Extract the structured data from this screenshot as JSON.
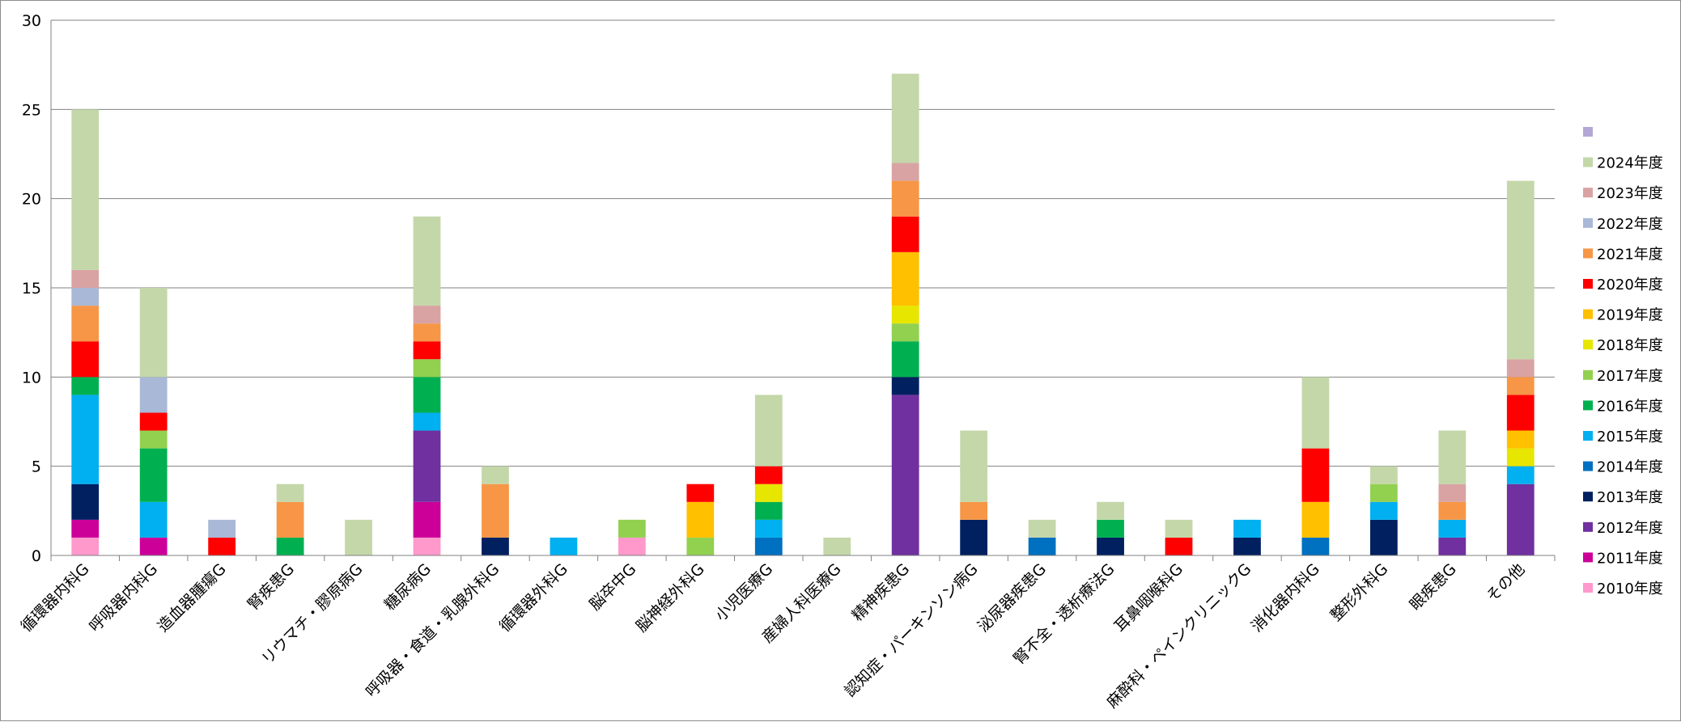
{
  "chart_data": {
    "type": "bar",
    "stacked": true,
    "ylim": [
      0,
      30
    ],
    "yticks": [
      "0",
      "5",
      "10",
      "15",
      "20",
      "25",
      "30"
    ],
    "grid": true,
    "legend_position": "right",
    "categories": [
      "循環器内科G",
      "呼吸器内科G",
      "造血器腫瘍G",
      "腎疾患G",
      "リウマチ・膠原病G",
      "糖尿病G",
      "呼吸器・食道・乳腺外科G",
      "循環器外科G",
      "脳卒中G",
      "脳神経外科G",
      "小児医療G",
      "産婦人科医療G",
      "精神疾患G",
      "認知症・パーキンソン病G",
      "泌尿器疾患G",
      "腎不全・透析療法G",
      "耳鼻咽喉科G",
      "麻酔科・ペインクリニックG",
      "消化器内科G",
      "整形外科G",
      "眼疾患G",
      "その他"
    ],
    "series": [
      {
        "name": "2010年度",
        "color": "#ff99cc",
        "values": [
          1,
          0,
          0,
          0,
          0,
          1,
          0,
          0,
          1,
          0,
          0,
          0,
          0,
          0,
          0,
          0,
          0,
          0,
          0,
          0,
          0,
          0
        ]
      },
      {
        "name": "2011年度",
        "color": "#cc0099",
        "values": [
          1,
          1,
          0,
          0,
          0,
          2,
          0,
          0,
          0,
          0,
          0,
          0,
          0,
          0,
          0,
          0,
          0,
          0,
          0,
          0,
          0,
          0
        ]
      },
      {
        "name": "2012年度",
        "color": "#7030a0",
        "values": [
          0,
          0,
          0,
          0,
          0,
          4,
          0,
          0,
          0,
          0,
          0,
          0,
          9,
          0,
          0,
          0,
          0,
          0,
          0,
          0,
          1,
          4
        ]
      },
      {
        "name": "2013年度",
        "color": "#002060",
        "values": [
          2,
          0,
          0,
          0,
          0,
          0,
          1,
          0,
          0,
          0,
          0,
          0,
          1,
          2,
          0,
          1,
          0,
          1,
          0,
          2,
          0,
          0
        ]
      },
      {
        "name": "2014年度",
        "color": "#0070c0",
        "values": [
          0,
          0,
          0,
          0,
          0,
          0,
          0,
          0,
          0,
          0,
          1,
          0,
          0,
          0,
          1,
          0,
          0,
          0,
          1,
          0,
          0,
          0
        ]
      },
      {
        "name": "2015年度",
        "color": "#00b0f0",
        "values": [
          5,
          2,
          0,
          0,
          0,
          1,
          0,
          1,
          0,
          0,
          1,
          0,
          0,
          0,
          0,
          0,
          0,
          1,
          0,
          1,
          1,
          1
        ]
      },
      {
        "name": "2016年度",
        "color": "#00b050",
        "values": [
          1,
          3,
          0,
          1,
          0,
          2,
          0,
          0,
          0,
          0,
          1,
          0,
          2,
          0,
          0,
          1,
          0,
          0,
          0,
          0,
          0,
          0
        ]
      },
      {
        "name": "2017年度",
        "color": "#92d050",
        "values": [
          0,
          1,
          0,
          0,
          0,
          1,
          0,
          0,
          1,
          1,
          0,
          0,
          1,
          0,
          0,
          0,
          0,
          0,
          0,
          1,
          0,
          0
        ]
      },
      {
        "name": "2018年度",
        "color": "#e6e600",
        "values": [
          0,
          0,
          0,
          0,
          0,
          0,
          0,
          0,
          0,
          0,
          1,
          0,
          1,
          0,
          0,
          0,
          0,
          0,
          0,
          0,
          0,
          1
        ]
      },
      {
        "name": "2019年度",
        "color": "#ffc000",
        "values": [
          0,
          0,
          0,
          0,
          0,
          0,
          0,
          0,
          0,
          2,
          0,
          0,
          3,
          0,
          0,
          0,
          0,
          0,
          2,
          0,
          0,
          1
        ]
      },
      {
        "name": "2020年度",
        "color": "#ff0000",
        "values": [
          2,
          1,
          1,
          0,
          0,
          1,
          0,
          0,
          0,
          1,
          1,
          0,
          2,
          0,
          0,
          0,
          1,
          0,
          3,
          0,
          0,
          2
        ]
      },
      {
        "name": "2021年度",
        "color": "#f79646",
        "values": [
          2,
          0,
          0,
          2,
          0,
          1,
          3,
          0,
          0,
          0,
          0,
          0,
          2,
          1,
          0,
          0,
          0,
          0,
          0,
          0,
          1,
          1
        ]
      },
      {
        "name": "2022年度",
        "color": "#a9b8d6",
        "values": [
          1,
          2,
          1,
          0,
          0,
          0,
          0,
          0,
          0,
          0,
          0,
          0,
          0,
          0,
          0,
          0,
          0,
          0,
          0,
          0,
          0,
          0
        ]
      },
      {
        "name": "2023年度",
        "color": "#d9a3a3",
        "values": [
          1,
          0,
          0,
          0,
          0,
          1,
          0,
          0,
          0,
          0,
          0,
          0,
          1,
          0,
          0,
          0,
          0,
          0,
          0,
          0,
          1,
          1
        ]
      },
      {
        "name": "2024年度",
        "color": "#c4d7a9",
        "values": [
          9,
          5,
          0,
          1,
          2,
          5,
          1,
          0,
          0,
          0,
          4,
          1,
          5,
          4,
          1,
          1,
          1,
          0,
          4,
          1,
          3,
          10
        ]
      },
      {
        "name": "",
        "color": "#b4a7d6",
        "values": [
          0,
          0,
          0,
          0,
          0,
          0,
          0,
          0,
          0,
          0,
          0,
          0,
          0,
          0,
          0,
          0,
          0,
          0,
          0,
          0,
          0,
          0
        ]
      }
    ]
  }
}
